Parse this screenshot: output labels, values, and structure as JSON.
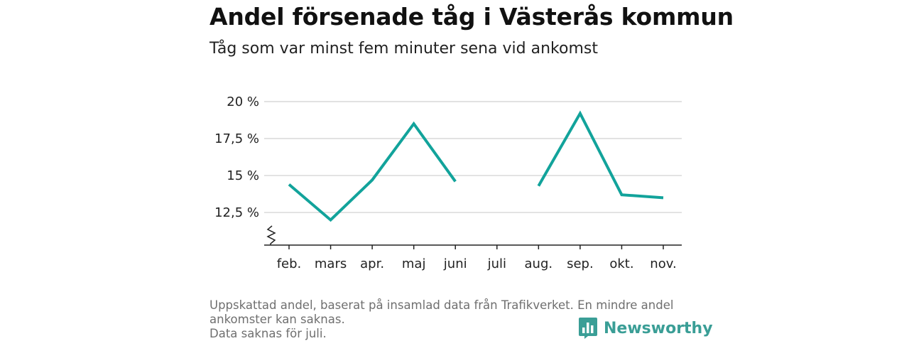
{
  "header": {
    "title": "Andel försenade tåg i Västerås kommun",
    "subtitle": "Tåg som var minst fem minuter sena vid ankomst"
  },
  "chart_data": {
    "type": "line",
    "title": "Andel försenade tåg i Västerås kommun",
    "subtitle": "Tåg som var minst fem minuter sena vid ankomst",
    "categories": [
      "feb.",
      "mars",
      "apr.",
      "maj",
      "juni",
      "juli",
      "aug.",
      "sep.",
      "okt.",
      "nov."
    ],
    "series": [
      {
        "values": [
          14.4,
          12.0,
          14.7,
          18.5,
          14.6,
          null,
          14.3,
          19.2,
          13.7,
          13.5
        ]
      }
    ],
    "y_ticks": [
      12.5,
      15,
      17.5,
      20
    ],
    "y_tick_labels": [
      "12,5 %",
      "15 %",
      "17,5 %",
      "20 %"
    ],
    "ylim": [
      10.3,
      20
    ],
    "axis_break": true,
    "grid": true,
    "colors": {
      "line": "#12a39b",
      "grid": "#d9d9d9",
      "axis": "#222222"
    }
  },
  "footnote": {
    "lines": [
      "Uppskattad andel, baserat på insamlad data från Trafikverket. En mindre andel",
      "ankomster kan saknas.",
      "Data saknas för juli."
    ]
  },
  "brand": {
    "name": "Newsworthy",
    "icon": "newsworthy-logo-icon",
    "color": "#3a9e96"
  }
}
